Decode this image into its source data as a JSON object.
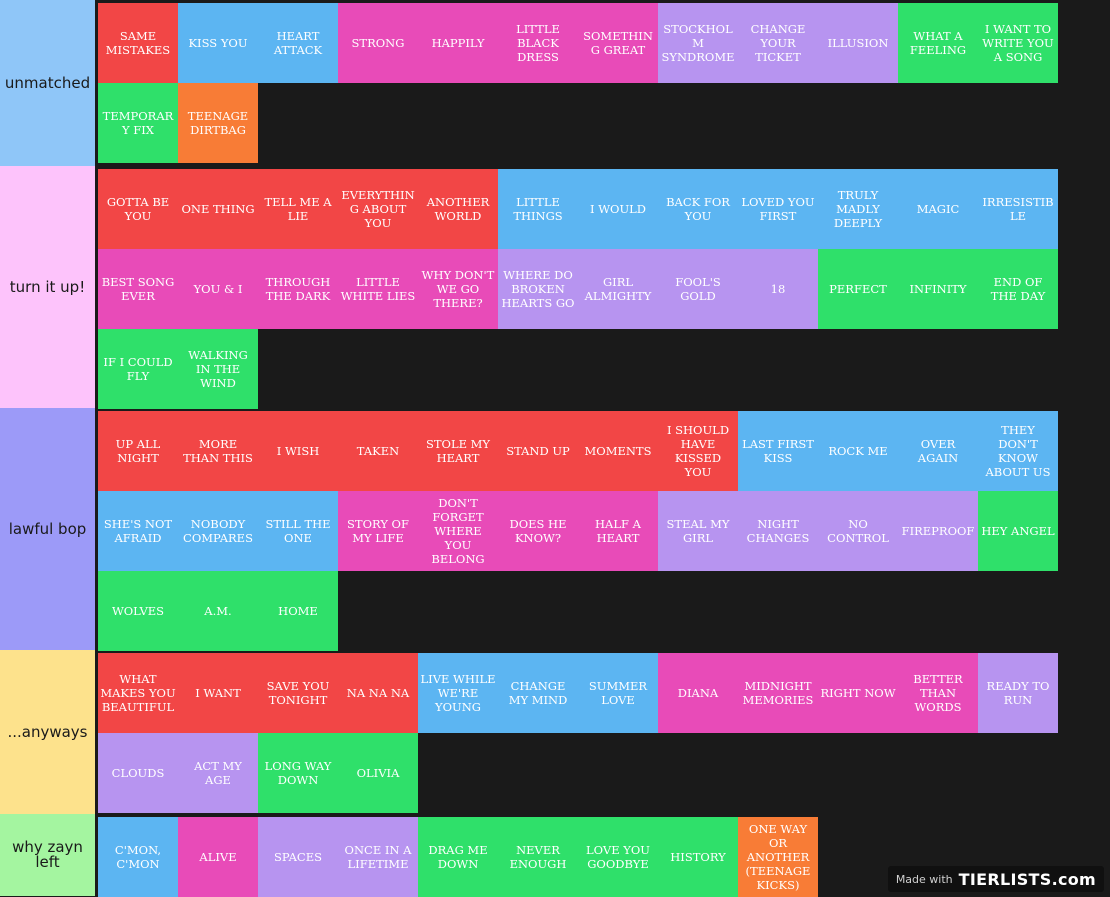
{
  "colors": {
    "red": "#f24646",
    "blue": "#5cb5f2",
    "pink": "#e84bb8",
    "purple": "#b794f0",
    "green": "#2fe06a",
    "orange": "#f87c36"
  },
  "tiers": [
    {
      "label": "unmatched",
      "color": "#8fc6f8",
      "items": [
        {
          "text": "SAME MISTAKES",
          "color": "red"
        },
        {
          "text": "KISS YOU",
          "color": "blue"
        },
        {
          "text": "HEART ATTACK",
          "color": "blue"
        },
        {
          "text": "STRONG",
          "color": "pink"
        },
        {
          "text": "HAPPILY",
          "color": "pink"
        },
        {
          "text": "LITTLE BLACK DRESS",
          "color": "pink"
        },
        {
          "text": "SOMETHING GREAT",
          "color": "pink"
        },
        {
          "text": "STOCKHOLM SYNDROME",
          "color": "purple"
        },
        {
          "text": "CHANGE YOUR TICKET",
          "color": "purple"
        },
        {
          "text": "ILLUSION",
          "color": "purple"
        },
        {
          "text": "WHAT A FEELING",
          "color": "green"
        },
        {
          "text": "I WANT TO WRITE YOU A SONG",
          "color": "green"
        },
        {
          "text": "TEMPORARY FIX",
          "color": "green"
        },
        {
          "text": "TEENAGE DIRTBAG",
          "color": "orange"
        }
      ]
    },
    {
      "label": "turn it up!",
      "color": "#fdc3fb",
      "items": [
        {
          "text": "GOTTA BE YOU",
          "color": "red"
        },
        {
          "text": "ONE THING",
          "color": "red"
        },
        {
          "text": "TELL ME A LIE",
          "color": "red"
        },
        {
          "text": "EVERYTHING ABOUT YOU",
          "color": "red"
        },
        {
          "text": "ANOTHER WORLD",
          "color": "red"
        },
        {
          "text": "LITTLE THINGS",
          "color": "blue"
        },
        {
          "text": "I WOULD",
          "color": "blue"
        },
        {
          "text": "BACK FOR YOU",
          "color": "blue"
        },
        {
          "text": "LOVED YOU FIRST",
          "color": "blue"
        },
        {
          "text": "TRULY MADLY DEEPLY",
          "color": "blue"
        },
        {
          "text": "MAGIC",
          "color": "blue"
        },
        {
          "text": "IRRESISTIBLE",
          "color": "blue"
        },
        {
          "text": "BEST SONG EVER",
          "color": "pink"
        },
        {
          "text": "YOU & I",
          "color": "pink"
        },
        {
          "text": "THROUGH THE DARK",
          "color": "pink"
        },
        {
          "text": "LITTLE WHITE LIES",
          "color": "pink"
        },
        {
          "text": "WHY DON'T WE GO THERE?",
          "color": "pink"
        },
        {
          "text": "WHERE DO BROKEN HEARTS GO",
          "color": "purple"
        },
        {
          "text": "GIRL ALMIGHTY",
          "color": "purple"
        },
        {
          "text": "FOOL'S GOLD",
          "color": "purple"
        },
        {
          "text": "18",
          "color": "purple"
        },
        {
          "text": "PERFECT",
          "color": "green"
        },
        {
          "text": "INFINITY",
          "color": "green"
        },
        {
          "text": "END OF THE DAY",
          "color": "green"
        },
        {
          "text": "IF I COULD FLY",
          "color": "green"
        },
        {
          "text": "WALKING IN THE WIND",
          "color": "green"
        }
      ]
    },
    {
      "label": "lawful bop",
      "color": "#9c9af8",
      "items": [
        {
          "text": "UP ALL NIGHT",
          "color": "red"
        },
        {
          "text": "MORE THAN THIS",
          "color": "red"
        },
        {
          "text": "I WISH",
          "color": "red"
        },
        {
          "text": "TAKEN",
          "color": "red"
        },
        {
          "text": "STOLE MY HEART",
          "color": "red"
        },
        {
          "text": "STAND UP",
          "color": "red"
        },
        {
          "text": "MOMENTS",
          "color": "red"
        },
        {
          "text": "I SHOULD HAVE KISSED YOU",
          "color": "red"
        },
        {
          "text": "LAST FIRST KISS",
          "color": "blue"
        },
        {
          "text": "ROCK ME",
          "color": "blue"
        },
        {
          "text": "OVER AGAIN",
          "color": "blue"
        },
        {
          "text": "THEY DON'T KNOW ABOUT US",
          "color": "blue"
        },
        {
          "text": "SHE'S NOT AFRAID",
          "color": "blue"
        },
        {
          "text": "NOBODY COMPARES",
          "color": "blue"
        },
        {
          "text": "STILL THE ONE",
          "color": "blue"
        },
        {
          "text": "STORY OF MY LIFE",
          "color": "pink"
        },
        {
          "text": "DON'T FORGET WHERE YOU BELONG",
          "color": "pink"
        },
        {
          "text": "DOES HE KNOW?",
          "color": "pink"
        },
        {
          "text": "HALF A HEART",
          "color": "pink"
        },
        {
          "text": "STEAL MY GIRL",
          "color": "purple"
        },
        {
          "text": "NIGHT CHANGES",
          "color": "purple"
        },
        {
          "text": "NO CONTROL",
          "color": "purple"
        },
        {
          "text": "FIREPROOF",
          "color": "purple"
        },
        {
          "text": "HEY ANGEL",
          "color": "green"
        },
        {
          "text": "WOLVES",
          "color": "green"
        },
        {
          "text": "A.M.",
          "color": "green"
        },
        {
          "text": "HOME",
          "color": "green"
        }
      ]
    },
    {
      "label": "...anyways",
      "color": "#fde28c",
      "items": [
        {
          "text": "WHAT MAKES YOU BEAUTIFUL",
          "color": "red"
        },
        {
          "text": "I WANT",
          "color": "red"
        },
        {
          "text": "SAVE YOU TONIGHT",
          "color": "red"
        },
        {
          "text": "NA NA NA",
          "color": "red"
        },
        {
          "text": "LIVE WHILE WE'RE YOUNG",
          "color": "blue"
        },
        {
          "text": "CHANGE MY MIND",
          "color": "blue"
        },
        {
          "text": "SUMMER LOVE",
          "color": "blue"
        },
        {
          "text": "DIANA",
          "color": "pink"
        },
        {
          "text": "MIDNIGHT MEMORIES",
          "color": "pink"
        },
        {
          "text": "RIGHT NOW",
          "color": "pink"
        },
        {
          "text": "BETTER THAN WORDS",
          "color": "pink"
        },
        {
          "text": "READY TO RUN",
          "color": "purple"
        },
        {
          "text": "CLOUDS",
          "color": "purple"
        },
        {
          "text": "ACT MY AGE",
          "color": "purple"
        },
        {
          "text": "LONG WAY DOWN",
          "color": "green"
        },
        {
          "text": "OLIVIA",
          "color": "green"
        }
      ]
    },
    {
      "label": "why zayn left",
      "color": "#a4f5a0",
      "items": [
        {
          "text": "C'MON, C'MON",
          "color": "blue"
        },
        {
          "text": "ALIVE",
          "color": "pink"
        },
        {
          "text": "SPACES",
          "color": "purple"
        },
        {
          "text": "ONCE IN A LIFETIME",
          "color": "purple"
        },
        {
          "text": "DRAG ME DOWN",
          "color": "green"
        },
        {
          "text": "NEVER ENOUGH",
          "color": "green"
        },
        {
          "text": "LOVE YOU GOODBYE",
          "color": "green"
        },
        {
          "text": "HISTORY",
          "color": "green"
        },
        {
          "text": "ONE WAY OR ANOTHER (TEENAGE KICKS)",
          "color": "orange"
        }
      ]
    }
  ],
  "watermark": {
    "made_with": "Made with",
    "brand": "TIERLISTS.com"
  }
}
